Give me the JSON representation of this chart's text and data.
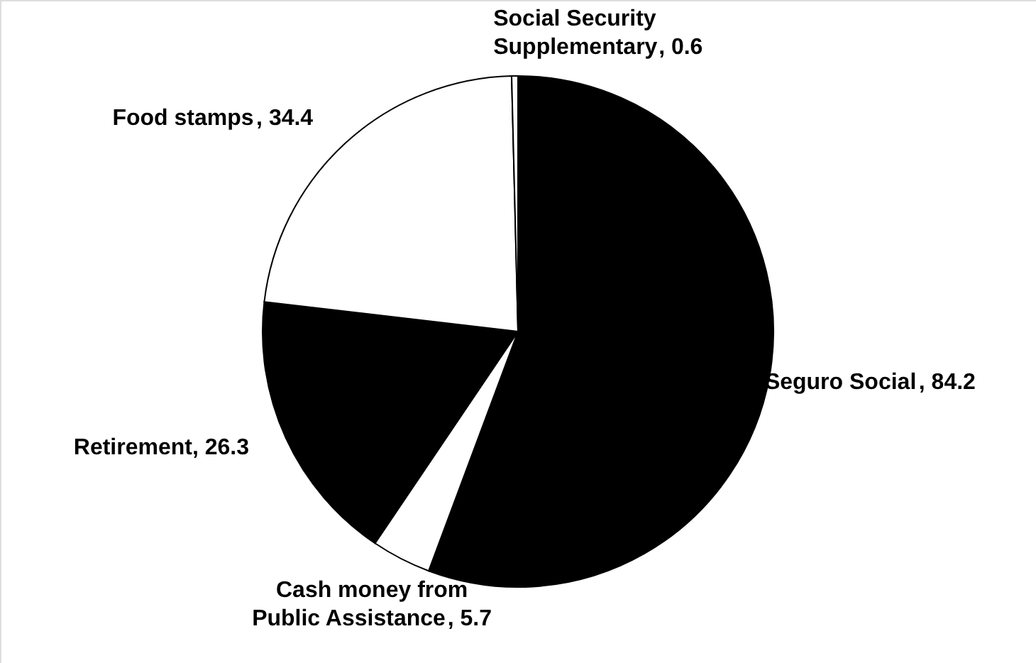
{
  "chart_data": {
    "type": "pie",
    "categories": [
      "Seguro Social",
      "Cash money from Public Assistance",
      "Retirement",
      "Food stamps",
      "Social Security Supplementary"
    ],
    "values": [
      84.2,
      5.7,
      26.3,
      34.4,
      0.6
    ],
    "value_labels": [
      ", 84.2",
      ", 5.7",
      ", 26.3",
      ", 34.4",
      ", 0.6"
    ],
    "colors": [
      "#000000",
      "#ffffff",
      "#000000",
      "#ffffff",
      "#ffffff"
    ]
  }
}
